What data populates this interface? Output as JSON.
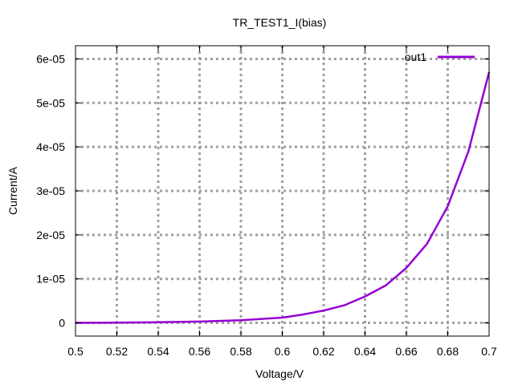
{
  "chart_data": {
    "type": "line",
    "title": "TR_TEST1_I(bias)",
    "xlabel": "Voltage/V",
    "ylabel": "Current/A",
    "xlim": [
      0.5,
      0.7
    ],
    "ylim": [
      -3e-06,
      6.3e-05
    ],
    "grid": true,
    "legend_position": "top-right",
    "xticks": [
      0.5,
      0.52,
      0.54,
      0.56,
      0.58,
      0.6,
      0.62,
      0.64,
      0.66,
      0.68,
      0.7
    ],
    "xtick_labels": [
      "0.5",
      "0.52",
      "0.54",
      "0.56",
      "0.58",
      "0.6",
      "0.62",
      "0.64",
      "0.66",
      "0.68",
      "0.7"
    ],
    "yticks": [
      0,
      1e-05,
      2e-05,
      3e-05,
      4e-05,
      5e-05,
      6e-05
    ],
    "ytick_labels": [
      "0",
      "1e-05",
      "2e-05",
      "3e-05",
      "4e-05",
      "5e-05",
      "6e-05"
    ],
    "series": [
      {
        "name": "out1",
        "color": "#9400d3",
        "x": [
          0.5,
          0.52,
          0.54,
          0.56,
          0.58,
          0.6,
          0.61,
          0.62,
          0.63,
          0.64,
          0.65,
          0.66,
          0.67,
          0.68,
          0.69,
          0.7
        ],
        "y": [
          0,
          5e-08,
          1.5e-07,
          3e-07,
          6e-07,
          1.2e-06,
          1.9e-06,
          2.8e-06,
          4e-06,
          6e-06,
          8.5e-06,
          1.25e-05,
          1.8e-05,
          2.65e-05,
          3.9e-05,
          5.7e-05
        ]
      }
    ]
  }
}
